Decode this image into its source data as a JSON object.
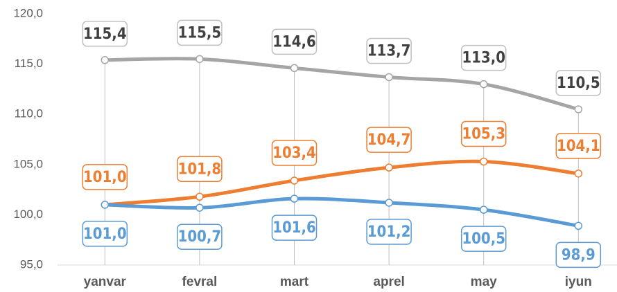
{
  "chart_data": {
    "type": "line",
    "categories": [
      "yanvar",
      "fevral",
      "mart",
      "aprel",
      "may",
      "iyun"
    ],
    "series": [
      {
        "color": "#a5a5a5",
        "values": [
          115.4,
          115.5,
          114.6,
          113.7,
          113.0,
          110.5
        ],
        "value_labels": [
          "115,4",
          "115,5",
          "114,6",
          "113,7",
          "113,0",
          "110,5"
        ]
      },
      {
        "color": "#ed7d31",
        "values": [
          101.0,
          101.8,
          103.4,
          104.7,
          105.3,
          104.1
        ],
        "value_labels": [
          "101,0",
          "101,8",
          "103,4",
          "104,7",
          "105,3",
          "104,1"
        ]
      },
      {
        "color": "#5b9bd5",
        "values": [
          101.0,
          100.7,
          101.6,
          101.2,
          100.5,
          98.9
        ],
        "value_labels": [
          "101,0",
          "100,7",
          "101,6",
          "101,2",
          "100,5",
          "98,9"
        ]
      }
    ],
    "ylim": [
      95,
      120
    ],
    "yticks": [
      {
        "value": 95,
        "label": "95,0"
      },
      {
        "value": 100,
        "label": "100,0"
      },
      {
        "value": 105,
        "label": "105,0"
      },
      {
        "value": 110,
        "label": "110,0"
      },
      {
        "value": 115,
        "label": "115,0"
      },
      {
        "value": 120,
        "label": "120,0"
      }
    ],
    "grid": false
  }
}
